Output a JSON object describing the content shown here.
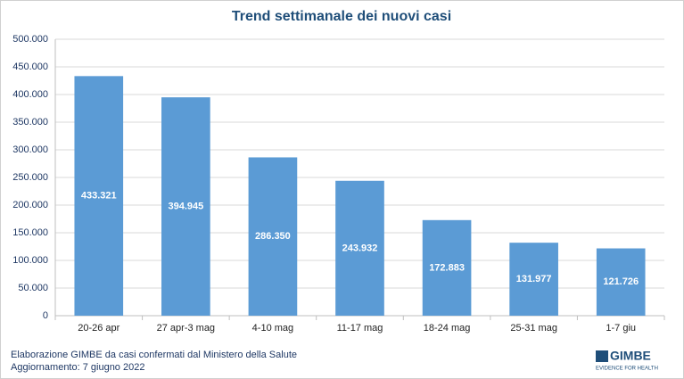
{
  "chart_data": {
    "type": "bar",
    "title": "Trend settimanale dei nuovi casi",
    "categories": [
      "20-26 apr",
      "27 apr-3 mag",
      "4-10 mag",
      "11-17 mag",
      "18-24 mag",
      "25-31 mag",
      "1-7 giu"
    ],
    "values": [
      433321,
      394945,
      286350,
      243932,
      172883,
      131977,
      121726
    ],
    "value_labels": [
      "433.321",
      "394.945",
      "286.350",
      "243.932",
      "172.883",
      "131.977",
      "121.726"
    ],
    "color": "#5b9bd5",
    "ylim": [
      0,
      500000
    ],
    "yticks": [
      0,
      {
        "value": 50000,
        "label": "50.000"
      },
      {
        "value": 100000,
        "label": "100.000"
      },
      {
        "value": 150000,
        "label": "150.000"
      },
      {
        "value": 200000,
        "label": "200.000"
      },
      {
        "value": 250000,
        "label": "250.000"
      },
      {
        "value": 300000,
        "label": "300.000"
      },
      {
        "value": 350000,
        "label": "350.000"
      },
      {
        "value": 400000,
        "label": "400.000"
      },
      {
        "value": 450000,
        "label": "450.000"
      },
      {
        "value": 500000,
        "label": "500.000"
      }
    ],
    "grid": true,
    "source": "Elaborazione GIMBE da casi confermati dal Ministero della Salute",
    "updated": "Aggiornamento: 7 giugno 2022",
    "logo": {
      "name": "GIMBE",
      "tagline": "EVIDENCE FOR HEALTH"
    }
  }
}
